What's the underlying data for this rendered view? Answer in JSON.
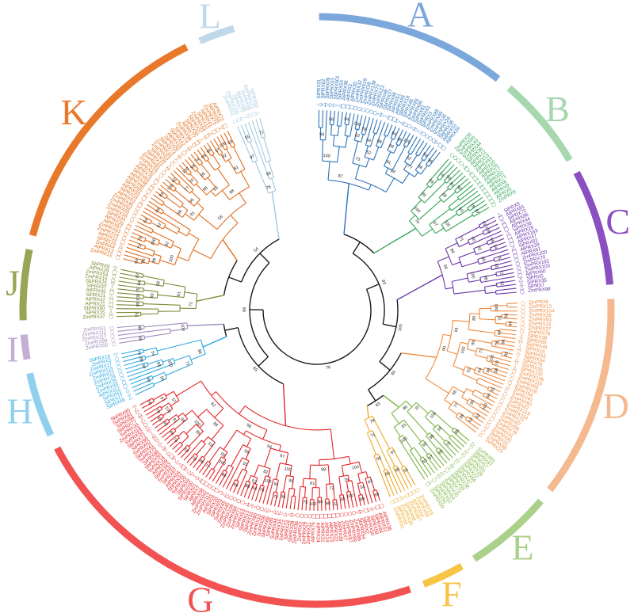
{
  "figure": {
    "type": "circular-phylogenetic-tree",
    "background": "#ffffff",
    "backbone_color": "#1a1a1a",
    "bootstrap_values": [
      87,
      100,
      99,
      56,
      94,
      73,
      82,
      100,
      79,
      52,
      64,
      98,
      58,
      91,
      68,
      84,
      95,
      100,
      77,
      62,
      88,
      53,
      96,
      70,
      100,
      85,
      59,
      74,
      99,
      66,
      81,
      92,
      57,
      100,
      63,
      78,
      97,
      55,
      86,
      71,
      93,
      60,
      100,
      83,
      69,
      54,
      89,
      76,
      100,
      65,
      98,
      72,
      51,
      90,
      61,
      80,
      100,
      75,
      58,
      94
    ],
    "species_markers": {
      "At": "square",
      "Zm": "circle",
      "Si": "triangle-up",
      "Sb": "triangle-down",
      "Sv": "triangle-right"
    },
    "marker_glyphs": {
      "square": "□",
      "circle": "○",
      "triangle-up": "△",
      "triangle-down": "▽",
      "triangle-right": "▷"
    },
    "backbone_topology": [
      [
        [
          "A",
          "B"
        ],
        [
          "C",
          [
            "D",
            [
              "E",
              "F"
            ]
          ]
        ]
      ],
      [
        [
          "G",
          [
            "H",
            "I"
          ]
        ],
        [
          [
            "J",
            "K"
          ],
          "L"
        ]
      ]
    ],
    "clades": [
      {
        "id": "A",
        "letter": "A",
        "band_color": "#7BA7DA",
        "branch_color": "#2E74B8",
        "leaves": [
          "SiPRX31",
          "SiPRX62",
          "SbPRX09",
          "SbPRX03",
          "SbPRX001",
          "SiPRX53",
          "AtPRX38",
          "AtPRX2",
          "AtPRX30",
          "ZmPRX32",
          "ZmPRX019",
          "ZmPRX08",
          "ZmPRX138",
          "ZmPRX73",
          "ZmPRX23",
          "SiPRX48",
          "SbPRX27",
          "SiPRX98",
          "AtPRX51",
          "AtPRX68",
          "SbPRX18",
          "SiPRX46",
          "ZmPRX85",
          "ZmPRX95",
          "SiPRX81",
          "SbPRX51",
          "SiPRX3",
          "ZmPRX88",
          "ZmPRX48",
          "ZmPRX35",
          "ZmPRX26",
          "SbPRX36",
          "AtPRX33",
          "AtPRX34"
        ]
      },
      {
        "id": "B",
        "letter": "B",
        "band_color": "#A6D7AE",
        "branch_color": "#33A457",
        "leaves": [
          "ZmPRX34",
          "ZmPRX66",
          "ZmPRX43",
          "ZmPRX44",
          "SiPRX36",
          "AtPRX12",
          "SiPRX13",
          "AtPRX43",
          "AtPRX16",
          "AtPRX20",
          "AtPRX17",
          "AtPRX62",
          "AtPRX71",
          "AtPRX8",
          "AtPRX9",
          "AtPRX5",
          "ZmPRX5"
        ]
      },
      {
        "id": "C",
        "letter": "C",
        "band_color": "#8A4FC0",
        "branch_color": "#6B35A8",
        "leaves": [
          "SiPRX9",
          "AtPRX81",
          "SiPRX72",
          "AtPRX86",
          "AtPRX44",
          "SiPRX39",
          "AtPRX26",
          "AtPRX163",
          "AtPRX47",
          "SiPRX82",
          "AtPRX28",
          "AtPRX61",
          "ZmPRX100",
          "ZmPRX70",
          "ZmPRX102",
          "ZmPRX103",
          "AtPRX60",
          "SiPRX5",
          "SiPRX35",
          "SiPRX7",
          "ZmPRX98"
        ]
      },
      {
        "id": "D",
        "letter": "D",
        "band_color": "#F4B98E",
        "branch_color": "#EE8A3E",
        "leaves": [
          "ZmPRX6",
          "ZmPRX13",
          "ZmPRX104",
          "ZmPRX36",
          "ZmPRX93",
          "ZmPRX33",
          "ZmPRX37",
          "ZmPRX76",
          "SiPRX38",
          "SiPRX56",
          "SbPRX44",
          "SiPRX16",
          "SbPRX52",
          "SbPRX34",
          "SiPRX78",
          "SbPRX26",
          "SiPRX132",
          "ZmPRX106",
          "ZmPRX110",
          "ZmPRX65",
          "ZmPRX28",
          "SiPRX64",
          "SvPRX40",
          "ZmPRX92",
          "SvPRX42",
          "ZmPRX119",
          "ZmPRX114",
          "ZmPRX27",
          "SvPRX87",
          "ZmPRX58",
          "ZmPRX78",
          "SvPRX31",
          "ZmPRX41",
          "SbPRX21",
          "ZmPRX68",
          "SvPRX23"
        ]
      },
      {
        "id": "E",
        "letter": "E",
        "band_color": "#ABD08A",
        "branch_color": "#7CB342",
        "leaves": [
          "SvPRX83",
          "SbPRX47",
          "SiPRX57",
          "SvPRX61",
          "SbPRX29",
          "SiPRX22",
          "SvPRX66",
          "SiPRX47",
          "SbPRX38",
          "AtPRX58",
          "SiPRX73",
          "SvPRX35",
          "SbPRX64",
          "ZmPRX52",
          "SiPRX55",
          "ZmPRX59"
        ]
      },
      {
        "id": "F",
        "letter": "F",
        "band_color": "#F6C544",
        "branch_color": "#EDAA2B",
        "leaves": [
          "ZmPRX19",
          "ZmPRX56",
          "AtPRX64",
          "ZmPRX87",
          "SiPRX68",
          "ZmPRX30",
          "AtPRX69",
          "ZmPRX31"
        ]
      },
      {
        "id": "G",
        "letter": "G",
        "band_color": "#F25252",
        "branch_color": "#E42528",
        "leaves": [
          "AtPRX36",
          "AtPRX52",
          "SiPRX84",
          "SiPRX59",
          "AtPRX50",
          "SiPRX2",
          "SbPRX54",
          "ZmPRX86",
          "ZmPRX89",
          "ZmPRX97",
          "ZmPRX7",
          "AtPRX39",
          "AtPRX22",
          "AtPRX23",
          "AtPRX14",
          "AtPRX31",
          "AtPRX24",
          "AtPRX79",
          "ZmPRX11",
          "ZmPRX29",
          "ZmPRX2",
          "ZmPRX38",
          "SbPRX28",
          "SiPRX24",
          "SvPRX12",
          "SbPRX35",
          "SvPRX44",
          "SiPRX85",
          "SbPRX66",
          "SvPRX58",
          "ZmPRX10",
          "ZmPRX60",
          "SbPRX33",
          "SbPRX13",
          "SiPRX63",
          "ZmPRX71",
          "ZmPRX84",
          "ZmPRX108",
          "ZmPRX45",
          "SvPRX45",
          "SiPRX03",
          "SiPRX20",
          "AtPRX03",
          "ZmPRX112",
          "ZmPRX042",
          "AtPRX08",
          "AtPRX7",
          "SiPRX01",
          "SiPRX030",
          "SbPRX9",
          "SvPRX20",
          "SbPRX92",
          "AtPRX04",
          "SiPRX67",
          "SvPRX91",
          "SbPRX63",
          "AtPRX09",
          "SvPRX18",
          "SbPRX50",
          "SiPRX88",
          "SvPRX75",
          "SbPRX41",
          "SvPRX62",
          "SiPRX90",
          "SbPRX72",
          "SvPRX52",
          "ZmPRX118",
          "SvPRX33",
          "SbPRX77",
          "SiPRX94",
          "SvPRX81",
          "SbPRX85"
        ]
      },
      {
        "id": "H",
        "letter": "H",
        "band_color": "#90D0EC",
        "branch_color": "#2FA9E0",
        "leaves": [
          "SiPRX49",
          "SiPRX27",
          "SiPRX43",
          "AtPRX112",
          "ZmPRX40",
          "ZmPRX25",
          "ZmPRX24",
          "ZmPRX22",
          "ZmPRX115",
          "ZmPRX17",
          "ZmPRX3",
          "SbPRX19"
        ]
      },
      {
        "id": "I",
        "letter": "I",
        "band_color": "#C3AFD3",
        "branch_color": "#A18BBE",
        "leaves": [
          "ZmPRX50",
          "ZmPRX99",
          "ZmPRX117",
          "ZmPRX111",
          "ZmPRX61"
        ]
      },
      {
        "id": "J",
        "letter": "J",
        "band_color": "#98A557",
        "branch_color": "#7D8B33",
        "leaves": [
          "ZmPRX47",
          "SiPRX25",
          "SbPRX60",
          "AtPRX21",
          "AtPRX42",
          "SiPRX21",
          "AtPRX45",
          "SiPRX37",
          "SbPRX25",
          "ZmPRX15",
          "ZmPRX54",
          "AtPRX29",
          "SbPRX8"
        ]
      },
      {
        "id": "K",
        "letter": "K",
        "band_color": "#E8782A",
        "branch_color": "#E06E1E",
        "leaves": [
          "ZmPRX12",
          "AtPRX13",
          "ZmPRX4",
          "SiPRX15",
          "AtPRX15",
          "ZmPRX14",
          "ZmPRX63",
          "AtPRX67",
          "AtPRX35",
          "SiPRX44",
          "ZmPRX18",
          "ZmPRX20",
          "ZmPRX62",
          "ZmPRX46",
          "AtPRX63",
          "SiPRX33",
          "AtPRX55",
          "SiPRX65",
          "AtPRX65",
          "AtPRX48",
          "SiPRX69",
          "AtPRX70",
          "SiPRX42",
          "ZmPRX55",
          "ZmPRX81",
          "SbPRX15",
          "SiPRX58",
          "ZmPRX53",
          "ZmPRX16",
          "SbPRX73",
          "SiPRX26",
          "AtPRX18",
          "SbPRX42",
          "SiPRX74",
          "ZmPRX96",
          "AtPRX77",
          "SiPRX50",
          "SbPRX37",
          "ZmPRX64",
          "SiPRX12",
          "AtPRX41",
          "ZmPRX75",
          "SbPRX55",
          "AtPRX72"
        ]
      },
      {
        "id": "L",
        "letter": "L",
        "band_color": "#BFD8EA",
        "branch_color": "#A3C8DE",
        "leaves": [
          "ZmPRX51",
          "ZmPRX105",
          "SiPRX77",
          "SbPRX48",
          "SvPRX28",
          "ZmPRX121",
          "SiPRX83"
        ]
      }
    ]
  }
}
